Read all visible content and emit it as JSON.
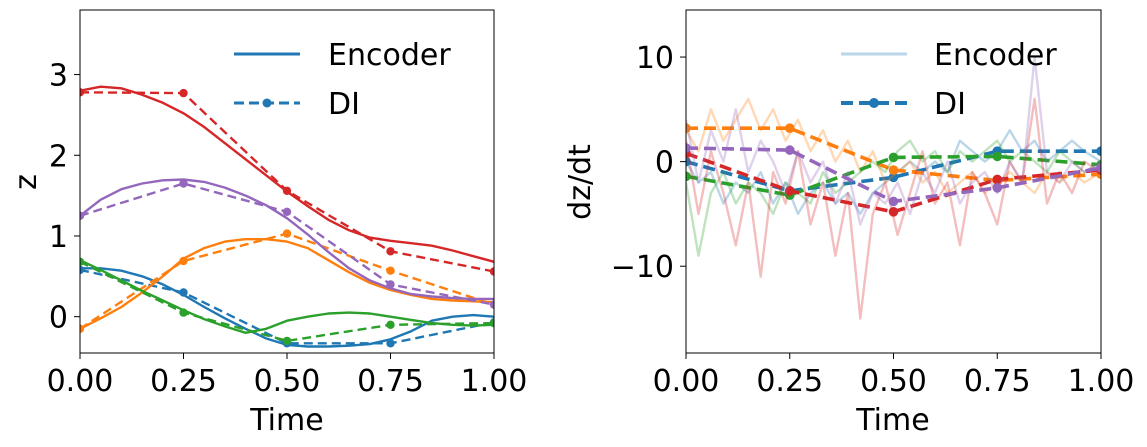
{
  "colors": {
    "blue": "#1f77b4",
    "orange": "#ff7f0e",
    "green": "#2ca02c",
    "red": "#d62728",
    "purple": "#9467bd"
  },
  "chart_data": [
    {
      "type": "line",
      "title": "",
      "xlabel": "Time",
      "ylabel": "z",
      "xlim": [
        0,
        1
      ],
      "ylim": [
        -0.45,
        3.8
      ],
      "xticks": [
        "0.00",
        "0.25",
        "0.50",
        "0.75",
        "1.00"
      ],
      "yticks": [
        "0",
        "1",
        "2",
        "3"
      ],
      "legend": {
        "position": "upper-right",
        "entries": [
          {
            "label": "Encoder",
            "style": "solid"
          },
          {
            "label": "DI",
            "style": "dashed-marker"
          }
        ]
      },
      "series": [
        {
          "name": "blue",
          "color": "#1f77b4",
          "encoder": {
            "x": [
              0,
              0.05,
              0.1,
              0.15,
              0.2,
              0.25,
              0.3,
              0.35,
              0.4,
              0.45,
              0.5,
              0.55,
              0.6,
              0.65,
              0.7,
              0.75,
              0.8,
              0.85,
              0.9,
              0.95,
              1.0
            ],
            "y": [
              0.6,
              0.6,
              0.57,
              0.5,
              0.4,
              0.27,
              0.12,
              -0.02,
              -0.15,
              -0.27,
              -0.35,
              -0.37,
              -0.37,
              -0.36,
              -0.34,
              -0.28,
              -0.18,
              -0.05,
              0.0,
              0.02,
              0.0
            ]
          },
          "di": {
            "x": [
              0,
              0.25,
              0.5,
              0.75,
              1.0
            ],
            "y": [
              0.58,
              0.3,
              -0.33,
              -0.33,
              -0.07
            ]
          }
        },
        {
          "name": "orange",
          "color": "#ff7f0e",
          "encoder": {
            "x": [
              0,
              0.05,
              0.1,
              0.15,
              0.2,
              0.25,
              0.3,
              0.35,
              0.4,
              0.45,
              0.5,
              0.55,
              0.6,
              0.65,
              0.7,
              0.75,
              0.8,
              0.85,
              0.9,
              0.95,
              1.0
            ],
            "y": [
              -0.15,
              -0.02,
              0.12,
              0.3,
              0.5,
              0.72,
              0.85,
              0.93,
              0.96,
              0.96,
              0.93,
              0.85,
              0.7,
              0.55,
              0.42,
              0.33,
              0.27,
              0.22,
              0.2,
              0.19,
              0.18
            ]
          },
          "di": {
            "x": [
              0,
              0.25,
              0.5,
              0.75,
              1.0
            ],
            "y": [
              -0.15,
              0.69,
              1.03,
              0.57,
              0.15
            ]
          }
        },
        {
          "name": "green",
          "color": "#2ca02c",
          "encoder": {
            "x": [
              0,
              0.05,
              0.1,
              0.15,
              0.2,
              0.25,
              0.3,
              0.35,
              0.4,
              0.45,
              0.5,
              0.55,
              0.6,
              0.65,
              0.7,
              0.75,
              0.8,
              0.85,
              0.9,
              0.95,
              1.0
            ],
            "y": [
              0.7,
              0.58,
              0.45,
              0.32,
              0.2,
              0.08,
              -0.03,
              -0.12,
              -0.2,
              -0.15,
              -0.05,
              0.0,
              0.04,
              0.05,
              0.04,
              0.0,
              -0.04,
              -0.08,
              -0.1,
              -0.11,
              -0.1
            ]
          },
          "di": {
            "x": [
              0,
              0.25,
              0.5,
              0.75,
              1.0
            ],
            "y": [
              0.68,
              0.05,
              -0.3,
              -0.1,
              -0.08
            ]
          }
        },
        {
          "name": "red",
          "color": "#d62728",
          "encoder": {
            "x": [
              0,
              0.05,
              0.1,
              0.15,
              0.2,
              0.25,
              0.3,
              0.35,
              0.4,
              0.45,
              0.5,
              0.55,
              0.6,
              0.65,
              0.7,
              0.75,
              0.8,
              0.85,
              0.9,
              0.95,
              1.0
            ],
            "y": [
              2.8,
              2.85,
              2.83,
              2.75,
              2.65,
              2.52,
              2.35,
              2.15,
              1.95,
              1.75,
              1.55,
              1.37,
              1.2,
              1.07,
              0.98,
              0.94,
              0.91,
              0.88,
              0.82,
              0.75,
              0.68
            ]
          },
          "di": {
            "x": [
              0,
              0.25,
              0.5,
              0.75,
              1.0
            ],
            "y": [
              2.78,
              2.77,
              1.56,
              0.81,
              0.56
            ]
          }
        },
        {
          "name": "purple",
          "color": "#9467bd",
          "encoder": {
            "x": [
              0,
              0.05,
              0.1,
              0.15,
              0.2,
              0.25,
              0.3,
              0.35,
              0.4,
              0.45,
              0.5,
              0.55,
              0.6,
              0.65,
              0.7,
              0.75,
              0.8,
              0.85,
              0.9,
              0.95,
              1.0
            ],
            "y": [
              1.25,
              1.45,
              1.58,
              1.65,
              1.69,
              1.7,
              1.67,
              1.6,
              1.5,
              1.38,
              1.22,
              1.02,
              0.8,
              0.6,
              0.45,
              0.35,
              0.28,
              0.25,
              0.23,
              0.22,
              0.22
            ]
          },
          "di": {
            "x": [
              0,
              0.25,
              0.5,
              0.75,
              1.0
            ],
            "y": [
              1.25,
              1.65,
              1.3,
              0.4,
              0.15
            ]
          }
        }
      ]
    },
    {
      "type": "line",
      "title": "",
      "xlabel": "Time",
      "ylabel": "dz/dt",
      "xlim": [
        0,
        1
      ],
      "ylim": [
        -18.3,
        14.5
      ],
      "xticks": [
        "0.00",
        "0.25",
        "0.50",
        "0.75",
        "1.00"
      ],
      "yticks": [
        "−10",
        "0",
        "10"
      ],
      "legend": {
        "position": "upper-right",
        "entries": [
          {
            "label": "Encoder",
            "style": "solid-faded"
          },
          {
            "label": "DI",
            "style": "dashed-marker"
          }
        ]
      },
      "series": [
        {
          "name": "blue",
          "color": "#1f77b4",
          "encoder": {
            "x": [
              0,
              0.03,
              0.06,
              0.09,
              0.12,
              0.15,
              0.18,
              0.21,
              0.24,
              0.27,
              0.3,
              0.33,
              0.36,
              0.39,
              0.42,
              0.45,
              0.48,
              0.51,
              0.54,
              0.57,
              0.6,
              0.63,
              0.66,
              0.69,
              0.72,
              0.75,
              0.78,
              0.81,
              0.84,
              0.87,
              0.9,
              0.93,
              0.96,
              1.0
            ],
            "y": [
              0,
              -2,
              -1,
              -4,
              -2,
              -3,
              -1,
              -4,
              -2,
              -5,
              -3,
              -2,
              -4,
              -3,
              -5,
              -3,
              -2,
              -1,
              0,
              -1,
              0,
              -1,
              2,
              1,
              0,
              1,
              3,
              1,
              2,
              0,
              1,
              2,
              1,
              0
            ]
          },
          "di": {
            "x": [
              0,
              0.25,
              0.5,
              0.75,
              1.0
            ],
            "y": [
              0,
              -2.8,
              -1.5,
              1.0,
              1.0
            ]
          }
        },
        {
          "name": "orange",
          "color": "#ff7f0e",
          "encoder": {
            "x": [
              0,
              0.03,
              0.06,
              0.09,
              0.12,
              0.15,
              0.18,
              0.21,
              0.24,
              0.27,
              0.3,
              0.33,
              0.36,
              0.39,
              0.42,
              0.45,
              0.48,
              0.51,
              0.54,
              0.57,
              0.6,
              0.63,
              0.66,
              0.69,
              0.72,
              0.75,
              0.78,
              0.81,
              0.84,
              0.87,
              0.9,
              0.93,
              0.96,
              1.0
            ],
            "y": [
              3,
              1,
              5,
              2,
              4,
              6,
              3,
              5,
              2,
              4,
              1,
              3,
              0,
              2,
              -1,
              1,
              -2,
              -1,
              0,
              -2,
              -1,
              -3,
              -2,
              -1,
              -3,
              -2,
              -1,
              -2,
              -3,
              -1,
              -2,
              -1,
              -2,
              -1
            ]
          },
          "di": {
            "x": [
              0,
              0.25,
              0.5,
              0.75,
              1.0
            ],
            "y": [
              3.2,
              3.2,
              -0.8,
              -1.8,
              -1.2
            ]
          }
        },
        {
          "name": "green",
          "color": "#2ca02c",
          "encoder": {
            "x": [
              0,
              0.03,
              0.06,
              0.09,
              0.12,
              0.15,
              0.18,
              0.21,
              0.24,
              0.27,
              0.3,
              0.33,
              0.36,
              0.39,
              0.42,
              0.45,
              0.48,
              0.51,
              0.54,
              0.57,
              0.6,
              0.63,
              0.66,
              0.69,
              0.72,
              0.75,
              0.78,
              0.81,
              0.84,
              0.87,
              0.9,
              0.93,
              0.96,
              1.0
            ],
            "y": [
              -2,
              -9,
              -3,
              -1,
              -4,
              -2,
              -3,
              -5,
              -2,
              -3,
              -4,
              -1,
              -3,
              -2,
              -1,
              0,
              -1,
              1,
              2,
              0,
              1,
              -1,
              1,
              0,
              1,
              2,
              0,
              1,
              0,
              -1,
              1,
              0,
              -1,
              0
            ]
          },
          "di": {
            "x": [
              0,
              0.25,
              0.5,
              0.75,
              1.0
            ],
            "y": [
              -1.4,
              -3.2,
              0.4,
              0.5,
              -0.3
            ]
          }
        },
        {
          "name": "red",
          "color": "#d62728",
          "encoder": {
            "x": [
              0,
              0.03,
              0.06,
              0.09,
              0.12,
              0.15,
              0.18,
              0.21,
              0.24,
              0.27,
              0.3,
              0.33,
              0.36,
              0.39,
              0.42,
              0.45,
              0.48,
              0.51,
              0.54,
              0.57,
              0.6,
              0.63,
              0.66,
              0.69,
              0.72,
              0.75,
              0.78,
              0.81,
              0.84,
              0.87,
              0.9,
              0.93,
              0.96,
              1.0
            ],
            "y": [
              2,
              -5,
              1,
              -3,
              -8,
              -2,
              -11,
              -1,
              -4,
              1,
              -6,
              -2,
              -9,
              -3,
              -15,
              -5,
              -2,
              -7,
              -3,
              1,
              -4,
              -2,
              -8,
              -1,
              -3,
              -6,
              0,
              -2,
              6,
              -4,
              -1,
              -3,
              0,
              -1
            ]
          },
          "di": {
            "x": [
              0,
              0.25,
              0.5,
              0.75,
              1.0
            ],
            "y": [
              0.8,
              -2.8,
              -4.8,
              -1.7,
              -0.8
            ]
          }
        },
        {
          "name": "purple",
          "color": "#9467bd",
          "encoder": {
            "x": [
              0,
              0.03,
              0.06,
              0.09,
              0.12,
              0.15,
              0.18,
              0.21,
              0.24,
              0.27,
              0.3,
              0.33,
              0.36,
              0.39,
              0.42,
              0.45,
              0.48,
              0.51,
              0.54,
              0.57,
              0.6,
              0.63,
              0.66,
              0.69,
              0.72,
              0.75,
              0.78,
              0.81,
              0.84,
              0.87,
              0.9,
              0.93,
              0.96,
              1.0
            ],
            "y": [
              4,
              -2,
              3,
              0,
              5,
              -1,
              2,
              0,
              -3,
              1,
              -2,
              0,
              -4,
              -1,
              -6,
              -3,
              -4,
              -2,
              -5,
              -1,
              -3,
              0,
              -4,
              -2,
              -1,
              -3,
              0,
              -2,
              10,
              -1,
              -2,
              0,
              -1,
              0
            ]
          },
          "di": {
            "x": [
              0,
              0.25,
              0.5,
              0.75,
              1.0
            ],
            "y": [
              1.3,
              1.1,
              -3.8,
              -2.5,
              -0.6
            ]
          }
        }
      ]
    }
  ]
}
